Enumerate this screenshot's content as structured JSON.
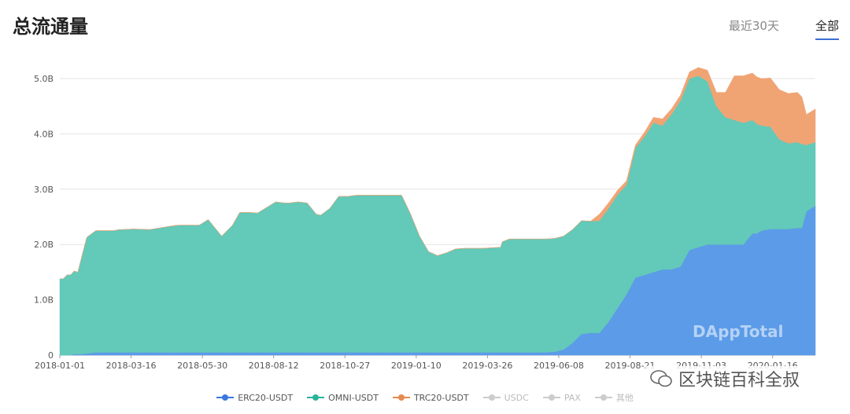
{
  "header": {
    "title": "总流通量"
  },
  "tabs": [
    {
      "label": "最近30天",
      "active": false
    },
    {
      "label": "全部",
      "active": true
    }
  ],
  "watermark": {
    "brand": "DAppTotal",
    "account": "区块链百科全叔"
  },
  "chart_data": {
    "type": "area",
    "stacked": true,
    "title": "总流通量",
    "xlabel": "",
    "ylabel": "",
    "ylim": [
      0,
      5.0
    ],
    "yticks": [
      0,
      1.0,
      2.0,
      3.0,
      4.0,
      5.0
    ],
    "ytick_labels": [
      "0",
      "1.0B",
      "2.0B",
      "3.0B",
      "4.0B",
      "5.0B"
    ],
    "xtick_labels": [
      "2018-01-01",
      "2018-03-16",
      "2018-05-30",
      "2018-08-12",
      "2018-10-27",
      "2019-01-10",
      "2019-03-26",
      "2019-06-08",
      "2019-08-21",
      "2019-11-03",
      "2020-01-16"
    ],
    "xlim": [
      0,
      840
    ],
    "grid": true,
    "x": [
      0,
      4,
      8,
      12,
      16,
      20,
      25,
      30,
      40,
      50,
      60,
      66,
      70,
      82,
      100,
      130,
      126,
      128,
      133,
      137,
      140,
      145,
      155,
      165,
      175,
      180,
      192,
      200,
      205,
      210,
      220,
      240,
      245,
      250,
      255,
      265,
      275,
      280,
      285,
      290,
      300,
      310,
      320,
      330,
      340,
      350,
      360,
      370,
      380,
      390,
      400,
      410,
      420,
      430,
      440,
      450,
      460,
      470,
      480,
      490,
      492,
      500,
      510,
      520,
      530,
      540,
      550,
      560,
      570,
      580,
      590,
      600,
      610,
      620,
      630,
      640,
      650,
      660,
      670,
      680,
      690,
      700,
      710,
      720,
      730,
      740,
      750,
      760,
      770,
      775,
      780,
      790,
      800,
      810,
      820,
      825,
      830,
      840
    ],
    "series": [
      {
        "name": "ERC20-USDT",
        "color": "#5b9be8",
        "values": [
          0.0,
          0.0,
          0.0,
          0.0,
          0.02,
          0.02,
          0.02,
          0.03,
          0.05,
          0.05,
          0.05,
          0.05,
          0.05,
          0.05,
          0.05,
          0.05,
          0.05,
          0.05,
          0.05,
          0.05,
          0.05,
          0.05,
          0.05,
          0.05,
          0.05,
          0.05,
          0.05,
          0.05,
          0.05,
          0.05,
          0.05,
          0.05,
          0.05,
          0.05,
          0.05,
          0.05,
          0.05,
          0.05,
          0.05,
          0.05,
          0.05,
          0.05,
          0.05,
          0.05,
          0.05,
          0.05,
          0.05,
          0.05,
          0.05,
          0.05,
          0.05,
          0.05,
          0.05,
          0.05,
          0.05,
          0.05,
          0.05,
          0.05,
          0.05,
          0.05,
          0.05,
          0.05,
          0.05,
          0.05,
          0.05,
          0.05,
          0.06,
          0.1,
          0.22,
          0.38,
          0.4,
          0.4,
          0.6,
          0.85,
          1.1,
          1.4,
          1.45,
          1.5,
          1.55,
          1.55,
          1.6,
          1.9,
          1.95,
          2.0,
          2.0,
          2.0,
          2.0,
          2.0,
          2.2,
          2.2,
          2.25,
          2.28,
          2.28,
          2.28,
          2.3,
          2.3,
          2.6,
          2.7
        ]
      },
      {
        "name": "OMNI-USDT",
        "color": "#63c9b8",
        "values": [
          1.38,
          1.38,
          1.45,
          1.45,
          1.5,
          1.48,
          1.8,
          2.1,
          2.2,
          2.2,
          2.2,
          2.22,
          2.22,
          2.23,
          2.22,
          2.3,
          2.28,
          2.29,
          2.3,
          2.3,
          2.3,
          2.3,
          2.3,
          2.4,
          2.2,
          2.1,
          2.3,
          2.53,
          2.53,
          2.53,
          2.52,
          2.72,
          2.71,
          2.7,
          2.7,
          2.72,
          2.7,
          2.6,
          2.5,
          2.48,
          2.6,
          2.82,
          2.82,
          2.84,
          2.84,
          2.84,
          2.84,
          2.84,
          2.84,
          2.5,
          2.1,
          1.82,
          1.75,
          1.8,
          1.87,
          1.88,
          1.88,
          1.88,
          1.89,
          1.9,
          2.0,
          2.05,
          2.05,
          2.05,
          2.05,
          2.05,
          2.05,
          2.05,
          2.05,
          2.05,
          2.02,
          2.03,
          2.05,
          2.05,
          1.98,
          2.35,
          2.5,
          2.7,
          2.6,
          2.8,
          3.0,
          3.1,
          3.1,
          2.95,
          2.5,
          2.3,
          2.25,
          2.2,
          2.05,
          1.98,
          1.9,
          1.85,
          1.62,
          1.55,
          1.55,
          1.52,
          1.2,
          1.15
        ]
      },
      {
        "name": "TRC20-USDT",
        "color": "#f0a474",
        "values": [
          0,
          0,
          0,
          0,
          0,
          0,
          0,
          0,
          0,
          0,
          0,
          0,
          0,
          0,
          0,
          0,
          0,
          0,
          0,
          0,
          0,
          0,
          0,
          0,
          0,
          0,
          0,
          0,
          0,
          0,
          0,
          0,
          0,
          0,
          0,
          0,
          0,
          0,
          0,
          0,
          0,
          0,
          0,
          0,
          0,
          0,
          0,
          0,
          0,
          0,
          0,
          0,
          0,
          0,
          0,
          0,
          0,
          0,
          0,
          0,
          0,
          0,
          0,
          0,
          0,
          0,
          0,
          0,
          0,
          0,
          0,
          0.12,
          0.1,
          0.08,
          0.07,
          0.05,
          0.08,
          0.1,
          0.12,
          0.1,
          0.1,
          0.12,
          0.15,
          0.2,
          0.25,
          0.45,
          0.8,
          0.85,
          0.85,
          0.85,
          0.85,
          0.88,
          0.9,
          0.9,
          0.9,
          0.85,
          0.55,
          0.6
        ]
      }
    ],
    "legend": [
      {
        "name": "ERC20-USDT",
        "color": "#3a78e0",
        "active": true
      },
      {
        "name": "OMNI-USDT",
        "color": "#2ab39a",
        "active": true
      },
      {
        "name": "TRC20-USDT",
        "color": "#ea8a4e",
        "active": true
      },
      {
        "name": "USDC",
        "color": "#cccccc",
        "active": false
      },
      {
        "name": "PAX",
        "color": "#cccccc",
        "active": false
      },
      {
        "name": "其他",
        "color": "#cccccc",
        "active": false
      }
    ],
    "legend_position": "bottom-center"
  }
}
